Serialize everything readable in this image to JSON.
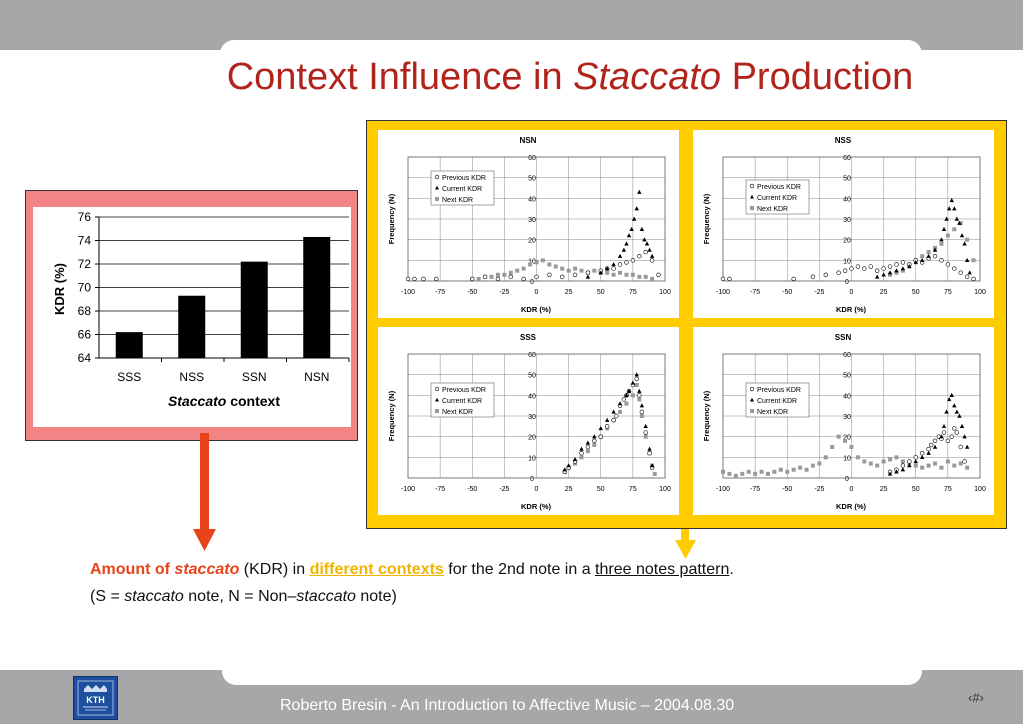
{
  "title": {
    "pre": "Context Influence in ",
    "italic": "Staccato",
    "post": " Production"
  },
  "caption": {
    "line1": {
      "a": "Amount of ",
      "b": "staccato",
      "c": " (KDR) in ",
      "d": "different contexts",
      "e": " for the 2nd note in a ",
      "f": "three notes pattern",
      "g": "."
    },
    "line2": {
      "a": "(S = ",
      "b": "staccato",
      "c": " note, N = Non–",
      "d": "staccato",
      "e": " note)"
    }
  },
  "footer": {
    "text": "Roberto Bresin - An Introduction to Affective Music – 2004.08.30",
    "page": "‹#›"
  },
  "logo": {
    "text": "KTH"
  },
  "colors": {
    "title": "#b1241c",
    "arrow": "#e8431b",
    "yellow_arrow": "#ffcc00",
    "panel_frame": "#ffcc00",
    "bar_frame": "#f28485"
  },
  "chart_data": [
    {
      "type": "bar",
      "categories": [
        "SSS",
        "NSS",
        "SSN",
        "NSN"
      ],
      "values": [
        66.2,
        69.3,
        72.2,
        74.3
      ],
      "ylabel": "KDR (%)",
      "xlabel": {
        "italic": "Staccato",
        "rest": " context"
      },
      "ylim": [
        64,
        76
      ],
      "yticks": [
        64,
        66,
        68,
        70,
        72,
        74,
        76
      ]
    },
    {
      "type": "scatter",
      "title": "NSN",
      "xlabel": "KDR (%)",
      "ylabel": "Frequency (N)",
      "xlim": [
        -100,
        100
      ],
      "ylim": [
        0,
        60
      ],
      "xticks": [
        -100,
        -75,
        -50,
        -25,
        0,
        25,
        50,
        75,
        100
      ],
      "yticks": [
        0,
        10,
        20,
        30,
        40,
        50,
        60
      ],
      "legend": [
        "Previous KDR",
        "Current KDR",
        "Next KDR"
      ],
      "series": [
        {
          "name": "Previous KDR",
          "x": [
            -100,
            -95,
            -88,
            -78,
            -50,
            -40,
            -30,
            -20,
            -10,
            0,
            10,
            20,
            30,
            40,
            50,
            55,
            60,
            65,
            70,
            75,
            80,
            85,
            90,
            95
          ],
          "y": [
            1,
            1,
            1,
            1,
            1,
            2,
            1,
            2,
            1,
            2,
            3,
            2,
            3,
            4,
            5,
            6,
            6,
            8,
            9,
            10,
            12,
            14,
            10,
            3
          ]
        },
        {
          "name": "Current KDR",
          "x": [
            40,
            50,
            55,
            60,
            65,
            68,
            70,
            72,
            74,
            76,
            78,
            80,
            82,
            84,
            86,
            88,
            90
          ],
          "y": [
            2,
            4,
            6,
            8,
            12,
            15,
            18,
            22,
            25,
            30,
            35,
            43,
            25,
            20,
            18,
            15,
            12
          ]
        },
        {
          "name": "Next KDR",
          "x": [
            -50,
            -45,
            -40,
            -35,
            -30,
            -25,
            -20,
            -15,
            -10,
            -5,
            0,
            5,
            10,
            15,
            20,
            25,
            30,
            35,
            40,
            45,
            50,
            55,
            60,
            65,
            70,
            75,
            80,
            85,
            90
          ],
          "y": [
            1,
            1,
            2,
            2,
            3,
            3,
            4,
            5,
            6,
            8,
            9,
            10,
            8,
            7,
            6,
            5,
            6,
            5,
            4,
            5,
            4,
            4,
            3,
            4,
            3,
            3,
            2,
            2,
            1
          ]
        }
      ]
    },
    {
      "type": "scatter",
      "title": "NSS",
      "xlabel": "KDR (%)",
      "ylabel": "Frequency (N)",
      "xlim": [
        -100,
        100
      ],
      "ylim": [
        0,
        60
      ],
      "xticks": [
        -100,
        -75,
        -50,
        -25,
        0,
        25,
        50,
        75,
        100
      ],
      "yticks": [
        0,
        10,
        20,
        30,
        40,
        50,
        60
      ],
      "legend": [
        "Previous KDR",
        "Current KDR",
        "Next KDR"
      ],
      "series": [
        {
          "name": "Previous KDR",
          "x": [
            -100,
            -95,
            -45,
            -30,
            -20,
            -10,
            -5,
            0,
            5,
            10,
            15,
            20,
            25,
            30,
            35,
            40,
            45,
            50,
            55,
            60,
            65,
            70,
            75,
            80,
            85,
            90,
            95
          ],
          "y": [
            1,
            1,
            1,
            2,
            3,
            4,
            5,
            6,
            7,
            6,
            7,
            5,
            6,
            7,
            8,
            9,
            8,
            10,
            9,
            11,
            12,
            10,
            8,
            6,
            4,
            2,
            1
          ]
        },
        {
          "name": "Current KDR",
          "x": [
            20,
            25,
            30,
            35,
            40,
            45,
            50,
            55,
            60,
            65,
            70,
            72,
            74,
            76,
            78,
            80,
            82,
            84,
            86,
            88,
            90,
            92
          ],
          "y": [
            2,
            3,
            4,
            5,
            6,
            7,
            9,
            10,
            12,
            15,
            20,
            25,
            30,
            35,
            39,
            35,
            30,
            28,
            22,
            18,
            10,
            4
          ]
        },
        {
          "name": "Next KDR",
          "x": [
            30,
            35,
            40,
            45,
            50,
            55,
            60,
            65,
            70,
            75,
            80,
            85,
            90,
            95
          ],
          "y": [
            3,
            4,
            5,
            8,
            10,
            12,
            14,
            16,
            18,
            22,
            25,
            28,
            20,
            10
          ]
        }
      ]
    },
    {
      "type": "scatter",
      "title": "SSS",
      "xlabel": "KDR (%)",
      "ylabel": "Frequency (N)",
      "xlim": [
        -100,
        100
      ],
      "ylim": [
        0,
        60
      ],
      "xticks": [
        -100,
        -75,
        -50,
        -25,
        0,
        25,
        50,
        75,
        100
      ],
      "yticks": [
        0,
        10,
        20,
        30,
        40,
        50,
        60
      ],
      "legend": [
        "Previous KDR",
        "Current KDR",
        "Next KDR"
      ],
      "series": [
        {
          "name": "Previous KDR",
          "x": [
            22,
            25,
            30,
            35,
            40,
            45,
            50,
            55,
            60,
            62,
            65,
            68,
            70,
            72,
            75,
            78,
            80,
            82,
            85,
            88,
            90
          ],
          "y": [
            3,
            5,
            8,
            12,
            15,
            18,
            20,
            25,
            28,
            30,
            35,
            38,
            40,
            42,
            45,
            48,
            40,
            32,
            22,
            12,
            5
          ]
        },
        {
          "name": "Current KDR",
          "x": [
            22,
            25,
            30,
            35,
            40,
            45,
            50,
            55,
            60,
            65,
            70,
            72,
            75,
            78,
            80,
            82,
            85,
            88,
            90
          ],
          "y": [
            4,
            6,
            9,
            14,
            17,
            20,
            24,
            28,
            32,
            36,
            40,
            42,
            46,
            50,
            42,
            35,
            25,
            14,
            6
          ]
        },
        {
          "name": "Next KDR",
          "x": [
            22,
            25,
            30,
            35,
            40,
            45,
            50,
            55,
            60,
            65,
            70,
            75,
            78,
            80,
            82,
            85,
            88,
            90,
            92
          ],
          "y": [
            3,
            5,
            7,
            10,
            13,
            16,
            20,
            24,
            28,
            32,
            36,
            40,
            45,
            38,
            30,
            20,
            12,
            6,
            2
          ]
        }
      ]
    },
    {
      "type": "scatter",
      "title": "SSN",
      "xlabel": "KDR (%)",
      "ylabel": "Frequency (N)",
      "xlim": [
        -100,
        100
      ],
      "ylim": [
        0,
        60
      ],
      "xticks": [
        -100,
        -75,
        -50,
        -25,
        0,
        25,
        50,
        75,
        100
      ],
      "yticks": [
        0,
        10,
        20,
        30,
        40,
        50,
        60
      ],
      "legend": [
        "Previous KDR",
        "Current KDR",
        "Next KDR"
      ],
      "series": [
        {
          "name": "Previous KDR",
          "x": [
            30,
            35,
            40,
            45,
            50,
            55,
            60,
            62,
            65,
            68,
            70,
            72,
            75,
            78,
            80,
            82,
            85,
            88
          ],
          "y": [
            3,
            4,
            6,
            8,
            10,
            12,
            14,
            16,
            18,
            20,
            19,
            22,
            18,
            20,
            24,
            22,
            15,
            8
          ]
        },
        {
          "name": "Current KDR",
          "x": [
            30,
            35,
            40,
            45,
            50,
            55,
            60,
            65,
            70,
            72,
            74,
            76,
            78,
            80,
            82,
            84,
            86,
            88,
            90
          ],
          "y": [
            2,
            3,
            4,
            6,
            8,
            10,
            12,
            15,
            20,
            25,
            32,
            38,
            40,
            35,
            32,
            30,
            25,
            20,
            15
          ]
        },
        {
          "name": "Next KDR",
          "x": [
            -100,
            -95,
            -90,
            -85,
            -80,
            -75,
            -70,
            -65,
            -60,
            -55,
            -50,
            -45,
            -40,
            -35,
            -30,
            -25,
            -20,
            -15,
            -10,
            -5,
            0,
            5,
            10,
            15,
            20,
            25,
            30,
            35,
            40,
            45,
            50,
            55,
            60,
            65,
            70,
            75,
            80,
            85,
            90
          ],
          "y": [
            3,
            2,
            1,
            2,
            3,
            2,
            3,
            2,
            3,
            4,
            3,
            4,
            5,
            4,
            6,
            7,
            10,
            15,
            20,
            18,
            15,
            10,
            8,
            7,
            6,
            8,
            9,
            10,
            8,
            7,
            6,
            5,
            6,
            7,
            5,
            8,
            6,
            7,
            5
          ]
        }
      ]
    }
  ]
}
